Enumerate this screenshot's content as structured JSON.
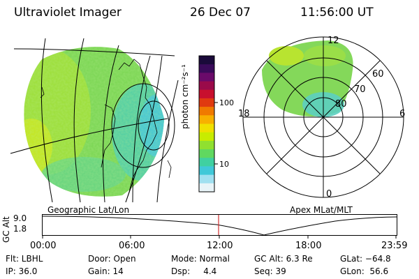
{
  "header": {
    "instrument": "Ultraviolet Imager",
    "date": "26 Dec 07",
    "time": "11:56:00 UT"
  },
  "colorbar": {
    "unit_label": "photon cm⁻²s⁻¹",
    "ticks": [
      "100",
      "10"
    ],
    "colors": [
      "#1a0a3a",
      "#3a0a5a",
      "#6a0a6a",
      "#9a0a4a",
      "#c8102e",
      "#e03a10",
      "#f07a00",
      "#f8b000",
      "#f0e000",
      "#c8ec00",
      "#90e030",
      "#60d860",
      "#40d0a0",
      "#40c8d8",
      "#a0e0f0",
      "#e8f4f8"
    ]
  },
  "left_map": {
    "label": "Geographic Lat/Lon"
  },
  "polar_plot": {
    "label": "Apex MLat/MLT",
    "mlt_labels": {
      "top": "12",
      "left": "18",
      "right": "6",
      "bottom": "0"
    },
    "lat_labels": [
      "60",
      "70",
      "80"
    ]
  },
  "altitude_plot": {
    "ylabel": "GC Alt",
    "yticks": [
      "9.0",
      "1.8"
    ],
    "xticks": [
      "00:00",
      "06:00",
      "12:00",
      "18:00",
      "23:59"
    ],
    "marker_color": "#d03030"
  },
  "status": {
    "row1": [
      {
        "text": "Flt: LBHL"
      },
      {
        "text": "Door: Open"
      },
      {
        "text": "Mode: Normal"
      },
      {
        "text": "GC Alt: 6.3 Re"
      },
      {
        "text": "GLat: −64.8"
      }
    ],
    "row2": [
      {
        "text": "IP: 36.0"
      },
      {
        "text": "Gain: 14"
      },
      {
        "text": "Dsp:     4.4"
      },
      {
        "text": "Seq: 39"
      },
      {
        "text": "GLon:  56.6"
      }
    ]
  }
}
